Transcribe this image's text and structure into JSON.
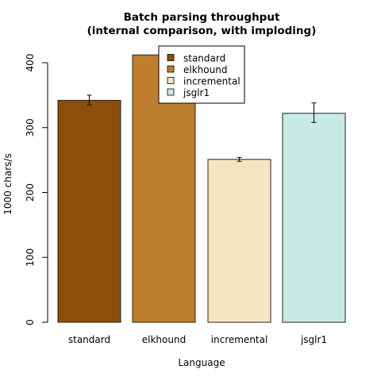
{
  "chart_data": {
    "type": "bar",
    "title": [
      "Batch parsing throughput",
      "(internal comparison, with imploding)"
    ],
    "xlabel": "Language",
    "ylabel": "1000 chars/s",
    "categories": [
      "standard",
      "elkhound",
      "incremental",
      "jsglr1"
    ],
    "values": [
      342,
      412,
      251,
      322
    ],
    "error_bars": [
      {
        "low": 335,
        "high": 350
      },
      {
        "low": 402,
        "high": 418
      },
      {
        "low": 248,
        "high": 254
      },
      {
        "low": 308,
        "high": 338
      }
    ],
    "colors": [
      "#8b4f0a",
      "#be7e30",
      "#f5e6c2",
      "#c8eae4"
    ],
    "ylim": [
      0,
      400
    ],
    "yticks": [
      0,
      100,
      200,
      300,
      400
    ],
    "legend": {
      "placement": "top-center",
      "entries": [
        "standard",
        "elkhound",
        "incremental",
        "jsglr1"
      ]
    },
    "grid": false
  }
}
